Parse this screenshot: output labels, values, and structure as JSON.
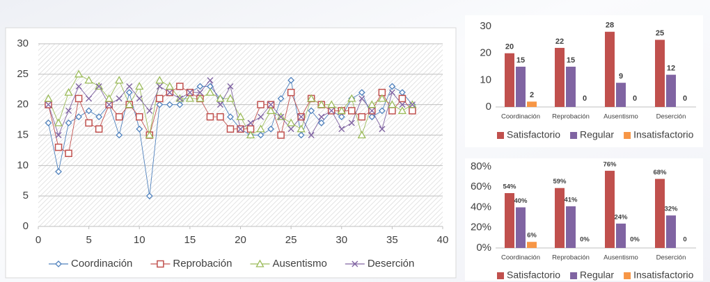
{
  "chart_data": [
    {
      "type": "line",
      "grid": true,
      "legend": "bottom",
      "x": [
        1,
        2,
        3,
        4,
        5,
        6,
        7,
        8,
        9,
        10,
        11,
        12,
        13,
        14,
        15,
        16,
        17,
        18,
        19,
        20,
        21,
        22,
        23,
        24,
        25,
        26,
        27,
        28,
        29,
        30,
        31,
        32,
        33,
        34,
        35,
        36,
        37
      ],
      "xlim": [
        0,
        40
      ],
      "xticks": [
        0,
        5,
        10,
        15,
        20,
        25,
        30,
        35,
        40
      ],
      "ylim": [
        0,
        30
      ],
      "yticks": [
        0,
        5,
        10,
        15,
        20,
        25,
        30
      ],
      "series": [
        {
          "name": "Coordinación",
          "color": "#4f81bd",
          "marker": "diamond",
          "values": [
            17,
            9,
            17,
            18,
            19,
            18,
            20,
            15,
            22,
            16,
            5,
            20,
            20,
            20,
            22,
            23,
            23,
            21,
            18,
            16,
            15,
            15,
            16,
            21,
            24,
            15,
            19,
            17,
            19,
            18,
            21,
            22,
            18,
            19,
            23,
            22,
            20
          ]
        },
        {
          "name": "Reprobación",
          "color": "#c0504d",
          "marker": "square",
          "values": [
            20,
            13,
            12,
            21,
            17,
            16,
            20,
            18,
            20,
            18,
            15,
            21,
            22,
            23,
            22,
            21,
            18,
            18,
            16,
            16,
            16,
            20,
            20,
            15,
            22,
            18,
            21,
            20,
            19,
            19,
            19,
            18,
            19,
            22,
            19,
            21,
            19
          ]
        },
        {
          "name": "Ausentismo",
          "color": "#9bbb59",
          "marker": "triangle",
          "values": [
            21,
            17,
            22,
            25,
            24,
            23,
            21,
            24,
            20,
            23,
            15,
            24,
            23,
            21,
            21,
            21,
            22,
            21,
            21,
            18,
            15,
            16,
            19,
            18,
            17,
            16,
            21,
            20,
            20,
            19,
            21,
            15,
            20,
            21,
            20,
            19,
            20
          ]
        },
        {
          "name": "Deserción",
          "color": "#8064a2",
          "marker": "x",
          "values": [
            20,
            15,
            19,
            23,
            21,
            23,
            20,
            21,
            23,
            21,
            19,
            23,
            22,
            21,
            22,
            22,
            24,
            20,
            23,
            16,
            17,
            18,
            20,
            18,
            16,
            18,
            15,
            18,
            19,
            16,
            17,
            21,
            19,
            16,
            22,
            20,
            20
          ]
        }
      ]
    },
    {
      "type": "bar",
      "grid": false,
      "legend": "bottom",
      "categories": [
        "Coordinación",
        "Reprobación",
        "Ausentismo",
        "Deserción"
      ],
      "ylim": [
        0,
        30
      ],
      "yticks": [
        0,
        10,
        20,
        30
      ],
      "series": [
        {
          "name": "Satisfactorio",
          "color": "#c0504d",
          "values": [
            20,
            22,
            28,
            25
          ]
        },
        {
          "name": "Regular",
          "color": "#8064a2",
          "values": [
            15,
            15,
            9,
            12
          ]
        },
        {
          "name": "Insatisfactorio",
          "color": "#f79646",
          "values": [
            2,
            0,
            0,
            0
          ]
        }
      ]
    },
    {
      "type": "bar",
      "grid": false,
      "legend": "bottom",
      "categories": [
        "Coordinación",
        "Reprobación",
        "Ausentismo",
        "Deserción"
      ],
      "ylim": [
        0,
        80
      ],
      "yticks": [
        {
          "value": 0,
          "label": "0%"
        },
        {
          "value": 20,
          "label": "20%"
        },
        {
          "value": 40,
          "label": "40%"
        },
        {
          "value": 60,
          "label": "60%"
        },
        {
          "value": 80,
          "label": "80%"
        }
      ],
      "series": [
        {
          "name": "Satisfactorio",
          "color": "#c0504d",
          "values": [
            54,
            59,
            76,
            68
          ],
          "value_labels": [
            "54%",
            "59%",
            "76%",
            "68%"
          ]
        },
        {
          "name": "Regular",
          "color": "#8064a2",
          "values": [
            40,
            41,
            24,
            32
          ],
          "value_labels": [
            "40%",
            "41%",
            "24%",
            "32%"
          ]
        },
        {
          "name": "Insatisfactorio",
          "color": "#f79646",
          "values": [
            6,
            0,
            0,
            0
          ],
          "value_labels": [
            "6%",
            "0%",
            "0%",
            "0"
          ]
        }
      ]
    }
  ]
}
